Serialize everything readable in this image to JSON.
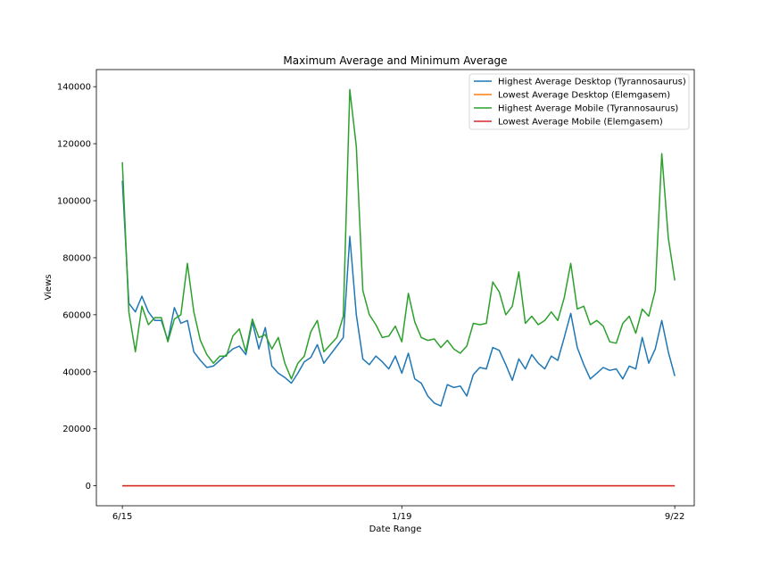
{
  "chart_data": {
    "type": "line",
    "title": "Maximum Average and Minimum Average",
    "xlabel": "Date Range",
    "ylabel": "Views",
    "xticks": [
      "6/15",
      "1/19",
      "9/22"
    ],
    "xlim": [
      -4,
      88
    ],
    "ylim": [
      -7000,
      146000
    ],
    "yticks": [
      0,
      20000,
      40000,
      60000,
      80000,
      100000,
      120000,
      140000
    ],
    "grid": false,
    "legend_position": "top-right",
    "series": [
      {
        "name": "Highest Average Desktop (Tyrannosaurus)",
        "color": "#1f77b4",
        "values": [
          107000,
          64000,
          61000,
          66500,
          61000,
          58000,
          58000,
          51000,
          62500,
          57000,
          58000,
          47000,
          44000,
          41500,
          42000,
          44000,
          46000,
          48000,
          49000,
          46000,
          57500,
          48000,
          55500,
          42000,
          39500,
          38000,
          36000,
          39500,
          43500,
          45000,
          49500,
          43000,
          46000,
          49000,
          52000,
          87500,
          60000,
          44500,
          42500,
          45500,
          43500,
          41000,
          45500,
          39500,
          46500,
          37500,
          36000,
          31500,
          29000,
          28000,
          35500,
          34500,
          35000,
          31500,
          39000,
          41500,
          41000,
          48500,
          47500,
          42500,
          37000,
          44500,
          41000,
          46000,
          43000,
          41000,
          45500,
          44000,
          52000,
          60500,
          48500,
          42500,
          37500,
          39500,
          41500,
          40500,
          41000,
          37500,
          42000,
          41000,
          52000,
          43000,
          48000,
          58000,
          47000,
          38500
        ]
      },
      {
        "name": "Lowest Average Desktop (Elemgasem)",
        "color": "#ff7f0e",
        "values": [
          0,
          0,
          0,
          0,
          0,
          0,
          0,
          0,
          0,
          0,
          0,
          0,
          0,
          0,
          0,
          0,
          0,
          0,
          0,
          0,
          0,
          0,
          0,
          0,
          0,
          0,
          0,
          0,
          0,
          0,
          0,
          0,
          0,
          0,
          0,
          0,
          0,
          0,
          0,
          0,
          0,
          0,
          0,
          0,
          0,
          0,
          0,
          0,
          0,
          0,
          0,
          0,
          0,
          0,
          0,
          0,
          0,
          0,
          0,
          0,
          0,
          0,
          0,
          0,
          0,
          0,
          0,
          0,
          0,
          0,
          0,
          0,
          0,
          0,
          0,
          0,
          0,
          0,
          0,
          0,
          0,
          0,
          0,
          0,
          0,
          0
        ]
      },
      {
        "name": "Highest Average Mobile (Tyrannosaurus)",
        "color": "#2ca02c",
        "values": [
          113500,
          61000,
          47000,
          63000,
          56500,
          59000,
          59000,
          50500,
          58500,
          60000,
          78000,
          61000,
          51000,
          46000,
          43000,
          45500,
          45500,
          52500,
          55000,
          47000,
          58500,
          52000,
          53000,
          48000,
          52000,
          43000,
          37500,
          43000,
          45500,
          54000,
          58000,
          47000,
          49500,
          52000,
          59500,
          139000,
          119000,
          68500,
          60000,
          56500,
          52000,
          52500,
          56000,
          50500,
          67500,
          57500,
          52000,
          51000,
          51500,
          48500,
          51000,
          48000,
          46500,
          49000,
          57000,
          56500,
          57000,
          71500,
          68000,
          60000,
          63000,
          75000,
          57000,
          59500,
          56500,
          58000,
          61000,
          58000,
          66000,
          78000,
          62000,
          63000,
          56500,
          58000,
          56000,
          50500,
          50000,
          57000,
          59500,
          53500,
          62000,
          59500,
          68500,
          116500,
          87000,
          72000
        ]
      },
      {
        "name": "Lowest Average Mobile (Elemgasem)",
        "color": "#d62728",
        "values": [
          0,
          0,
          0,
          0,
          0,
          0,
          0,
          0,
          0,
          0,
          0,
          0,
          0,
          0,
          0,
          0,
          0,
          0,
          0,
          0,
          0,
          0,
          0,
          0,
          0,
          0,
          0,
          0,
          0,
          0,
          0,
          0,
          0,
          0,
          0,
          0,
          0,
          0,
          0,
          0,
          0,
          0,
          0,
          0,
          0,
          0,
          0,
          0,
          0,
          0,
          0,
          0,
          0,
          0,
          0,
          0,
          0,
          0,
          0,
          0,
          0,
          0,
          0,
          0,
          0,
          0,
          0,
          0,
          0,
          0,
          0,
          0,
          0,
          0,
          0,
          0,
          0,
          0,
          0,
          0,
          0,
          0,
          0,
          0,
          0,
          0
        ]
      }
    ]
  }
}
